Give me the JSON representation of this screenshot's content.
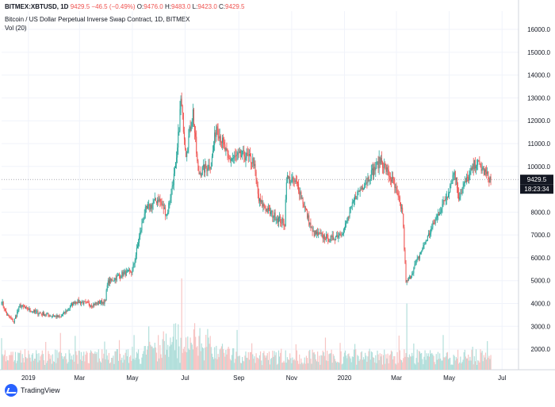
{
  "legend": {
    "symbol": "BITMEX:XBTUSD, 1D",
    "last": "9429.5",
    "change": "−46.5 (−0.49%)",
    "o_label": "O:",
    "o": "9476.0",
    "h_label": "H:",
    "h": "9483.0",
    "l_label": "L:",
    "l": "9423.0",
    "c_label": "C:",
    "c": "9429.5",
    "description": "Bitcoin / US Dollar Perpetual Inverse Swap Contract, 1D, BITMEX",
    "volume_indicator": "Vol (20)"
  },
  "price_badge": {
    "value": "9429.5",
    "countdown": "18:23:34"
  },
  "branding": {
    "name": "TradingView"
  },
  "colors": {
    "up": "#26a69a",
    "down": "#ef5350",
    "up_vol": "#b2dfdb",
    "down_vol": "#f7c5c4",
    "grid": "#f0f3fa",
    "axis_text": "#131722",
    "badge_bg": "#131722"
  },
  "chart_data": {
    "type": "candlestick",
    "xlim": [
      "2018-12-01",
      "2020-07-20"
    ],
    "ylim": [
      1100,
      16800
    ],
    "y_ticks": [
      2000,
      3000,
      4000,
      5000,
      6000,
      7000,
      8000,
      9000,
      10000,
      11000,
      12000,
      13000,
      14000,
      15000,
      16000
    ],
    "y_tick_labels": [
      "2000.0",
      "3000.0",
      "4000.0",
      "5000.0",
      "6000.0",
      "7000.0",
      "8000.0",
      "9000.0",
      "10000.0",
      "11000.0",
      "12000.0",
      "13000.0",
      "14000.0",
      "15000.0",
      "16000.0"
    ],
    "x_ticks": [
      {
        "date": "2019-01-01",
        "label": "2019"
      },
      {
        "date": "2019-03-01",
        "label": "Mar"
      },
      {
        "date": "2019-05-01",
        "label": "May"
      },
      {
        "date": "2019-07-01",
        "label": "Jul"
      },
      {
        "date": "2019-09-01",
        "label": "Sep"
      },
      {
        "date": "2019-11-01",
        "label": "Nov"
      },
      {
        "date": "2020-01-01",
        "label": "2020"
      },
      {
        "date": "2020-03-01",
        "label": "Mar"
      },
      {
        "date": "2020-05-01",
        "label": "May"
      },
      {
        "date": "2020-07-01",
        "label": "Jul"
      }
    ],
    "last_price": 9429.5,
    "grid": true,
    "price_path": [
      [
        "2018-12-01",
        4100
      ],
      [
        "2018-12-07",
        3500
      ],
      [
        "2018-12-15",
        3200
      ],
      [
        "2018-12-22",
        3900
      ],
      [
        "2018-12-31",
        3750
      ],
      [
        "2019-01-10",
        3600
      ],
      [
        "2019-01-31",
        3450
      ],
      [
        "2019-02-07",
        3400
      ],
      [
        "2019-02-24",
        4100
      ],
      [
        "2019-03-15",
        3950
      ],
      [
        "2019-03-31",
        4100
      ],
      [
        "2019-04-02",
        4900
      ],
      [
        "2019-04-20",
        5300
      ],
      [
        "2019-05-01",
        5400
      ],
      [
        "2019-05-15",
        8000
      ],
      [
        "2019-05-31",
        8600
      ],
      [
        "2019-06-10",
        7900
      ],
      [
        "2019-06-21",
        10200
      ],
      [
        "2019-06-26",
        12900
      ],
      [
        "2019-07-02",
        10600
      ],
      [
        "2019-07-10",
        12400
      ],
      [
        "2019-07-16",
        9700
      ],
      [
        "2019-07-31",
        10100
      ],
      [
        "2019-08-06",
        11800
      ],
      [
        "2019-08-20",
        10300
      ],
      [
        "2019-09-07",
        10500
      ],
      [
        "2019-09-18",
        10200
      ],
      [
        "2019-09-24",
        8500
      ],
      [
        "2019-10-06",
        8000
      ],
      [
        "2019-10-24",
        7500
      ],
      [
        "2019-10-26",
        9500
      ],
      [
        "2019-11-08",
        9200
      ],
      [
        "2019-11-25",
        7100
      ],
      [
        "2019-12-17",
        6800
      ],
      [
        "2019-12-31",
        7200
      ],
      [
        "2020-01-14",
        8700
      ],
      [
        "2020-02-12",
        10300
      ],
      [
        "2020-02-26",
        9300
      ],
      [
        "2020-03-08",
        8000
      ],
      [
        "2020-03-12",
        4900
      ],
      [
        "2020-03-16",
        5100
      ],
      [
        "2020-03-31",
        6400
      ],
      [
        "2020-04-29",
        8800
      ],
      [
        "2020-05-07",
        9800
      ],
      [
        "2020-05-12",
        8700
      ],
      [
        "2020-06-01",
        10200
      ],
      [
        "2020-06-18",
        9400
      ]
    ],
    "series": [
      {
        "name": "Vol (20)",
        "type": "volume",
        "typical": 1100,
        "peak": 5100,
        "peak_date": "2019-06-27"
      }
    ]
  }
}
